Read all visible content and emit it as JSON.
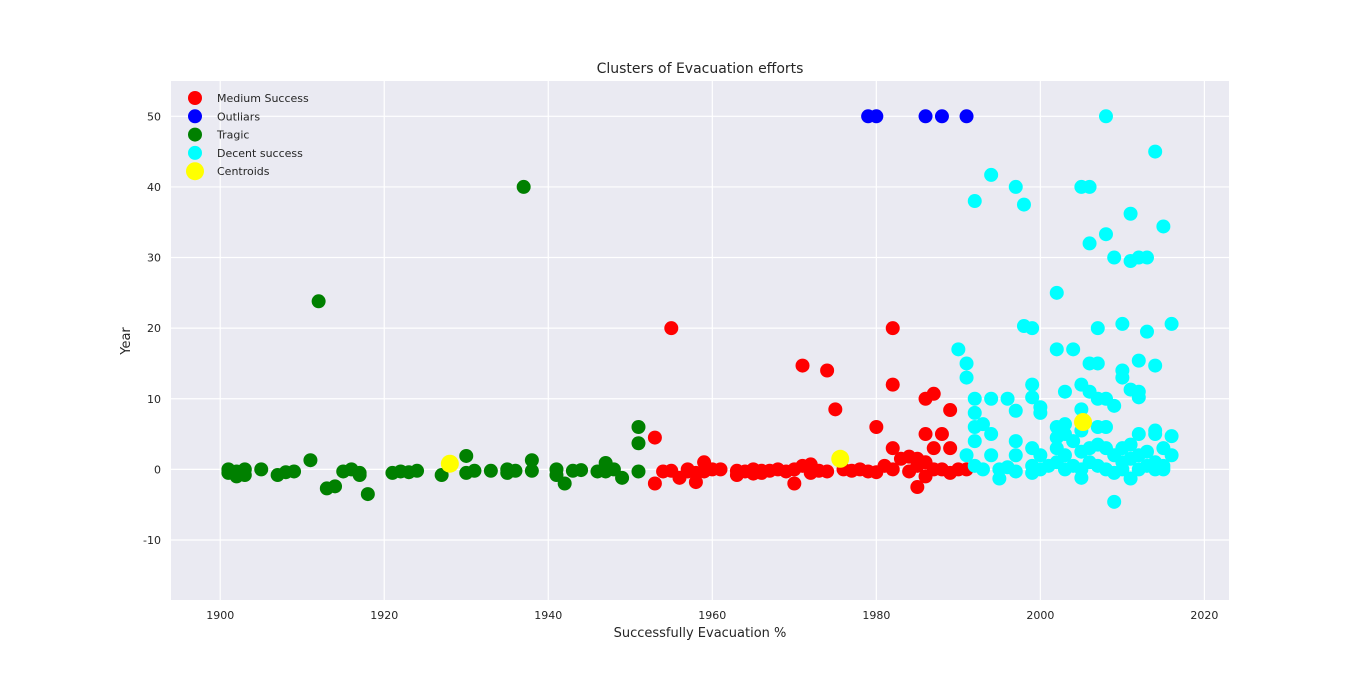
{
  "chart_data": {
    "type": "scatter",
    "title": "Clusters of Evacuation efforts",
    "xlabel": "Successfully Evacuation %",
    "ylabel": "Year",
    "xlim": [
      1894,
      2023
    ],
    "ylim": [
      -18.5,
      55
    ],
    "xticks": [
      1900,
      1920,
      1940,
      1960,
      1980,
      2000,
      2020
    ],
    "yticks": [
      -10,
      0,
      10,
      20,
      30,
      40,
      50
    ],
    "grid": true,
    "legend_position": "top-left",
    "series": [
      {
        "name": "Medium Success",
        "color": "#ff0000",
        "points": [
          [
            1953,
            -2
          ],
          [
            1953,
            4.5
          ],
          [
            1954,
            -0.3
          ],
          [
            1955,
            20
          ],
          [
            1955,
            -0.2
          ],
          [
            1956,
            -1.2
          ],
          [
            1957,
            -0.3
          ],
          [
            1957,
            0
          ],
          [
            1958,
            -1.8
          ],
          [
            1958,
            -0.5
          ],
          [
            1959,
            1
          ],
          [
            1959,
            -0.3
          ],
          [
            1960,
            0
          ],
          [
            1961,
            0
          ],
          [
            1963,
            -0.2
          ],
          [
            1963,
            -0.8
          ],
          [
            1964,
            -0.3
          ],
          [
            1965,
            -0.6
          ],
          [
            1965,
            0
          ],
          [
            1966,
            -0.2
          ],
          [
            1966,
            -0.5
          ],
          [
            1967,
            -0.2
          ],
          [
            1968,
            0
          ],
          [
            1969,
            -0.3
          ],
          [
            1970,
            0
          ],
          [
            1970,
            -2
          ],
          [
            1971,
            14.7
          ],
          [
            1971,
            0.5
          ],
          [
            1972,
            0.7
          ],
          [
            1972,
            -0.5
          ],
          [
            1973,
            -0.2
          ],
          [
            1974,
            14
          ],
          [
            1974,
            -0.3
          ],
          [
            1975,
            8.5
          ],
          [
            1976,
            0
          ],
          [
            1977,
            -0.2
          ],
          [
            1978,
            0
          ],
          [
            1979,
            -0.3
          ],
          [
            1980,
            6
          ],
          [
            1980,
            -0.4
          ],
          [
            1981,
            0.5
          ],
          [
            1982,
            20
          ],
          [
            1982,
            12
          ],
          [
            1982,
            3
          ],
          [
            1982,
            0
          ],
          [
            1983,
            1.5
          ],
          [
            1984,
            -0.3
          ],
          [
            1984,
            1.8
          ],
          [
            1985,
            -2.5
          ],
          [
            1985,
            0.5
          ],
          [
            1985,
            1.5
          ],
          [
            1986,
            10
          ],
          [
            1986,
            5
          ],
          [
            1986,
            -1
          ],
          [
            1986,
            1
          ],
          [
            1987,
            10.7
          ],
          [
            1987,
            3
          ],
          [
            1987,
            0
          ],
          [
            1988,
            5
          ],
          [
            1988,
            0
          ],
          [
            1989,
            8.4
          ],
          [
            1989,
            3
          ],
          [
            1989,
            -0.5
          ],
          [
            1990,
            0
          ],
          [
            1991,
            0
          ]
        ]
      },
      {
        "name": "Outliars",
        "color": "#0000ff",
        "points": [
          [
            1979,
            50
          ],
          [
            1980,
            50
          ],
          [
            1986,
            50
          ],
          [
            1988,
            50
          ],
          [
            1991,
            50
          ]
        ]
      },
      {
        "name": "Tragic",
        "color": "#008000",
        "points": [
          [
            1901,
            -0.5
          ],
          [
            1901,
            0
          ],
          [
            1902,
            -1
          ],
          [
            1902,
            -0.3
          ],
          [
            1903,
            -0.8
          ],
          [
            1903,
            0
          ],
          [
            1905,
            0
          ],
          [
            1907,
            -0.8
          ],
          [
            1908,
            -0.4
          ],
          [
            1909,
            -0.3
          ],
          [
            1911,
            1.3
          ],
          [
            1912,
            23.8
          ],
          [
            1913,
            -2.7
          ],
          [
            1914,
            -2.4
          ],
          [
            1915,
            -0.3
          ],
          [
            1916,
            0
          ],
          [
            1917,
            -0.8
          ],
          [
            1917,
            -0.5
          ],
          [
            1918,
            -3.5
          ],
          [
            1921,
            -0.5
          ],
          [
            1922,
            -0.3
          ],
          [
            1923,
            -0.4
          ],
          [
            1924,
            -0.2
          ],
          [
            1927,
            -0.8
          ],
          [
            1928,
            1
          ],
          [
            1930,
            1.9
          ],
          [
            1930,
            -0.5
          ],
          [
            1931,
            -0.2
          ],
          [
            1933,
            -0.2
          ],
          [
            1935,
            0
          ],
          [
            1935,
            -0.5
          ],
          [
            1936,
            -0.2
          ],
          [
            1937,
            40
          ],
          [
            1938,
            1.3
          ],
          [
            1938,
            -0.2
          ],
          [
            1941,
            0
          ],
          [
            1941,
            -0.8
          ],
          [
            1942,
            -2
          ],
          [
            1943,
            -0.2
          ],
          [
            1944,
            -0.1
          ],
          [
            1946,
            -0.3
          ],
          [
            1947,
            0.9
          ],
          [
            1947,
            -0.3
          ],
          [
            1948,
            0
          ],
          [
            1949,
            -1.2
          ],
          [
            1951,
            6
          ],
          [
            1951,
            3.7
          ],
          [
            1951,
            -0.3
          ]
        ]
      },
      {
        "name": "Decent success",
        "color": "#00ffff",
        "points": [
          [
            1990,
            17
          ],
          [
            1991,
            15
          ],
          [
            1991,
            13
          ],
          [
            1991,
            2
          ],
          [
            1992,
            38
          ],
          [
            1992,
            10
          ],
          [
            1992,
            8
          ],
          [
            1992,
            6
          ],
          [
            1992,
            4
          ],
          [
            1992,
            0.5
          ],
          [
            1993,
            6.4
          ],
          [
            1993,
            0
          ],
          [
            1994,
            41.7
          ],
          [
            1994,
            10
          ],
          [
            1994,
            5
          ],
          [
            1994,
            2
          ],
          [
            1995,
            0
          ],
          [
            1995,
            -1.3
          ],
          [
            1996,
            10
          ],
          [
            1996,
            0.3
          ],
          [
            1997,
            40
          ],
          [
            1997,
            8.3
          ],
          [
            1997,
            4
          ],
          [
            1997,
            2
          ],
          [
            1997,
            -0.3
          ],
          [
            1998,
            37.5
          ],
          [
            1998,
            20.3
          ],
          [
            1999,
            20
          ],
          [
            1999,
            12
          ],
          [
            1999,
            10.2
          ],
          [
            1999,
            3
          ],
          [
            1999,
            0.5
          ],
          [
            1999,
            -0.5
          ],
          [
            2000,
            8.8
          ],
          [
            2000,
            8
          ],
          [
            2000,
            2
          ],
          [
            2000,
            0
          ],
          [
            2001,
            0.5
          ],
          [
            2002,
            25
          ],
          [
            2002,
            17
          ],
          [
            2002,
            6
          ],
          [
            2002,
            4.5
          ],
          [
            2002,
            3
          ],
          [
            2002,
            1
          ],
          [
            2003,
            11
          ],
          [
            2003,
            6.4
          ],
          [
            2003,
            5
          ],
          [
            2003,
            2
          ],
          [
            2003,
            0
          ],
          [
            2004,
            17
          ],
          [
            2004,
            4
          ],
          [
            2004,
            0.5
          ],
          [
            2005,
            40
          ],
          [
            2005,
            12
          ],
          [
            2005,
            8.5
          ],
          [
            2005,
            5.5
          ],
          [
            2005,
            2.5
          ],
          [
            2005,
            0
          ],
          [
            2005,
            -1.2
          ],
          [
            2006,
            40
          ],
          [
            2006,
            32
          ],
          [
            2006,
            15
          ],
          [
            2006,
            11
          ],
          [
            2006,
            3
          ],
          [
            2006,
            1
          ],
          [
            2007,
            20
          ],
          [
            2007,
            15
          ],
          [
            2007,
            10
          ],
          [
            2007,
            6
          ],
          [
            2007,
            3.5
          ],
          [
            2007,
            0.5
          ],
          [
            2008,
            50
          ],
          [
            2008,
            33.3
          ],
          [
            2008,
            10
          ],
          [
            2008,
            6
          ],
          [
            2008,
            3
          ],
          [
            2008,
            0
          ],
          [
            2009,
            30
          ],
          [
            2009,
            9
          ],
          [
            2009,
            2
          ],
          [
            2009,
            -0.5
          ],
          [
            2009,
            -4.6
          ],
          [
            2010,
            20.6
          ],
          [
            2010,
            14
          ],
          [
            2010,
            13
          ],
          [
            2010,
            3
          ],
          [
            2010,
            1
          ],
          [
            2010,
            0
          ],
          [
            2011,
            36.2
          ],
          [
            2011,
            29.5
          ],
          [
            2011,
            11.3
          ],
          [
            2011,
            3.5
          ],
          [
            2011,
            1.5
          ],
          [
            2011,
            -1.3
          ],
          [
            2012,
            30
          ],
          [
            2012,
            15.4
          ],
          [
            2012,
            11
          ],
          [
            2012,
            10.2
          ],
          [
            2012,
            5
          ],
          [
            2012,
            2
          ],
          [
            2012,
            0
          ],
          [
            2013,
            30
          ],
          [
            2013,
            19.5
          ],
          [
            2013,
            2.5
          ],
          [
            2013,
            0.5
          ],
          [
            2014,
            45
          ],
          [
            2014,
            14.7
          ],
          [
            2014,
            5.5
          ],
          [
            2014,
            5
          ],
          [
            2014,
            1
          ],
          [
            2014,
            0
          ],
          [
            2015,
            34.4
          ],
          [
            2015,
            3
          ],
          [
            2015,
            0.5
          ],
          [
            2015,
            0
          ],
          [
            2016,
            20.6
          ],
          [
            2016,
            4.7
          ],
          [
            2016,
            2
          ]
        ]
      },
      {
        "name": "Centroids",
        "color": "#ffff00",
        "points": [
          [
            1928,
            0.8
          ],
          [
            1975.6,
            1.5
          ],
          [
            2005.2,
            6.7
          ]
        ]
      }
    ]
  }
}
